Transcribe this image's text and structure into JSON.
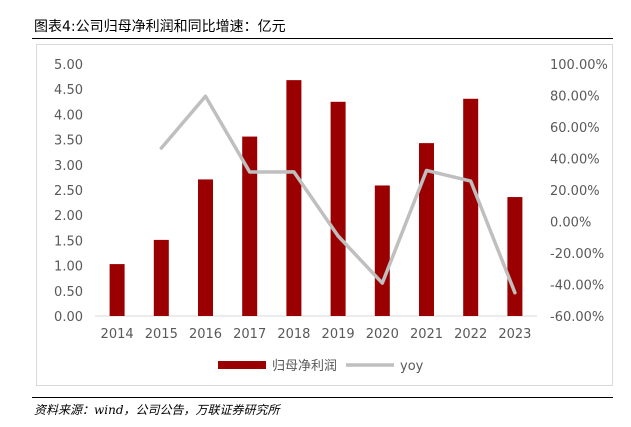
{
  "title": "图表4:公司归母净利润和同比增速：亿元",
  "source": "资料来源：wind，公司公告，万联证券研究所",
  "chart_data": {
    "type": "bar",
    "categories": [
      "2014",
      "2015",
      "2016",
      "2017",
      "2018",
      "2019",
      "2020",
      "2021",
      "2022",
      "2023"
    ],
    "series": [
      {
        "name": "归母净利润",
        "type": "bar",
        "axis": "left",
        "color": "#9b0000",
        "values": [
          1.03,
          1.51,
          2.71,
          3.56,
          4.68,
          4.25,
          2.59,
          3.43,
          4.31,
          2.36
        ]
      },
      {
        "name": "yoy",
        "type": "line",
        "axis": "right",
        "color": "#bfbfbf",
        "values": [
          null,
          46.6,
          79.5,
          31.4,
          31.5,
          -9.2,
          -39.1,
          32.4,
          25.7,
          -45.2
        ]
      }
    ],
    "y_left": {
      "min": 0,
      "max": 5,
      "step": 0.5,
      "tick_labels": [
        "0.00",
        "0.50",
        "1.00",
        "1.50",
        "2.00",
        "2.50",
        "3.00",
        "3.50",
        "4.00",
        "4.50",
        "5.00"
      ]
    },
    "y_right": {
      "min": -60,
      "max": 100,
      "step": 20,
      "tick_labels": [
        "-60.00%",
        "-40.00%",
        "-20.00%",
        "0.00%",
        "20.00%",
        "40.00%",
        "60.00%",
        "80.00%",
        "100.00%"
      ]
    },
    "xlabel": "",
    "ylabel": "",
    "grid": false,
    "legend": {
      "position": "bottom",
      "entries": [
        "归母净利润",
        "yoy"
      ]
    }
  }
}
